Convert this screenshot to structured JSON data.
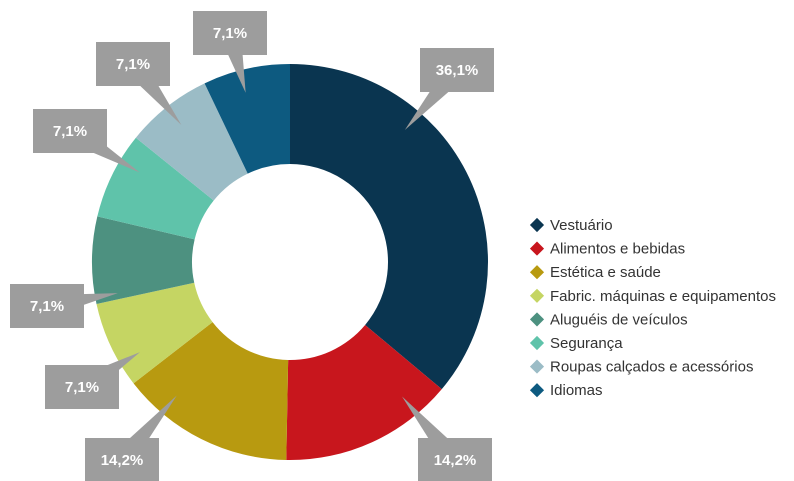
{
  "chart_data": {
    "type": "donut",
    "categories": [
      "Vestuário",
      "Alimentos e bebidas",
      "Estética e saúde",
      "Fabric. máquinas e equipamentos",
      "Aluguéis de veículos",
      "Segurança",
      "Roupas calçados e acessórios",
      "Idiomas"
    ],
    "values": [
      36.1,
      14.2,
      14.2,
      7.1,
      7.1,
      7.1,
      7.1,
      7.1
    ],
    "value_labels": [
      "36,1%",
      "14,2%",
      "14,2%",
      "7,1%",
      "7,1%",
      "7,1%",
      "7,1%",
      "7,1%"
    ],
    "colors": [
      "#0a3550",
      "#c8161d",
      "#b89a10",
      "#c5d563",
      "#4d9180",
      "#5fc3aa",
      "#9bbcc6",
      "#0d5a80"
    ],
    "legend": "right"
  }
}
